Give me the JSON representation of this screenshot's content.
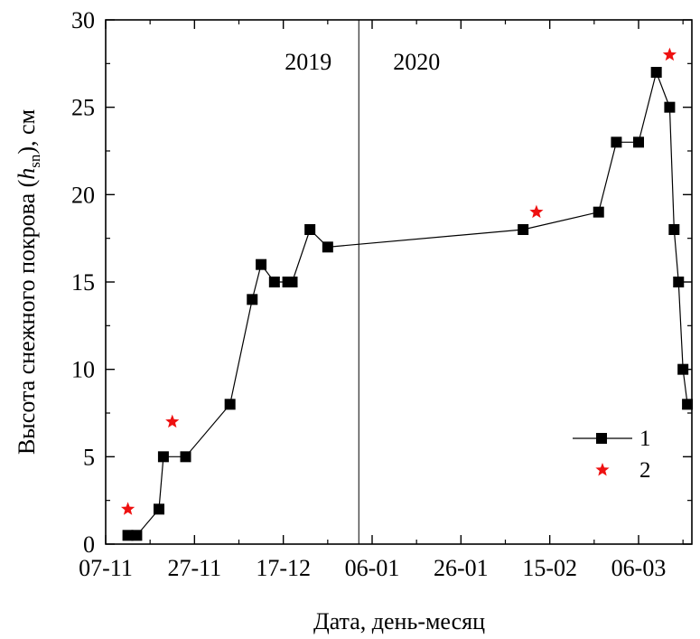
{
  "chart_data": {
    "type": "line",
    "xlabel": "Дата, день-месяц",
    "ylabel_main": "Высота снежного покрова (",
    "ylabel_italic": "h",
    "ylabel_sub": "sn",
    "ylabel_tail": "), см",
    "ylim": [
      0,
      30
    ],
    "yticks": [
      0,
      5,
      10,
      15,
      20,
      25,
      30
    ],
    "xlim": [
      "2019-11-07",
      "2020-03-18"
    ],
    "xtick_dates": [
      "2019-11-07",
      "2019-11-27",
      "2019-12-17",
      "2020-01-06",
      "2020-01-26",
      "2020-02-15",
      "2020-03-06"
    ],
    "xtick_labels": [
      "07-11",
      "27-11",
      "17-12",
      "06-01",
      "26-01",
      "15-02",
      "06-03"
    ],
    "year_divider_date": "2020-01-03",
    "year_labels": [
      {
        "text": "2019",
        "side": "left"
      },
      {
        "text": "2020",
        "side": "right"
      }
    ],
    "series": [
      {
        "name": "1",
        "marker": "square",
        "color": "#000000",
        "points": [
          {
            "x": "2019-11-12",
            "y": 0.5
          },
          {
            "x": "2019-11-14",
            "y": 0.5
          },
          {
            "x": "2019-11-19",
            "y": 2
          },
          {
            "x": "2019-11-20",
            "y": 5
          },
          {
            "x": "2019-11-25",
            "y": 5
          },
          {
            "x": "2019-12-05",
            "y": 8
          },
          {
            "x": "2019-12-10",
            "y": 14
          },
          {
            "x": "2019-12-12",
            "y": 16
          },
          {
            "x": "2019-12-15",
            "y": 15
          },
          {
            "x": "2019-12-18",
            "y": 15
          },
          {
            "x": "2019-12-19",
            "y": 15
          },
          {
            "x": "2019-12-23",
            "y": 18
          },
          {
            "x": "2019-12-27",
            "y": 17
          },
          {
            "x": "2020-02-09",
            "y": 18
          },
          {
            "x": "2020-02-26",
            "y": 19
          },
          {
            "x": "2020-03-01",
            "y": 23
          },
          {
            "x": "2020-03-06",
            "y": 23
          },
          {
            "x": "2020-03-10",
            "y": 27
          },
          {
            "x": "2020-03-13",
            "y": 25
          },
          {
            "x": "2020-03-14",
            "y": 18
          },
          {
            "x": "2020-03-15",
            "y": 15
          },
          {
            "x": "2020-03-16",
            "y": 10
          },
          {
            "x": "2020-03-17",
            "y": 8
          }
        ]
      },
      {
        "name": "2",
        "marker": "star",
        "color": "#ee1111",
        "points": [
          {
            "x": "2019-11-12",
            "y": 2
          },
          {
            "x": "2019-11-22",
            "y": 7
          },
          {
            "x": "2020-02-12",
            "y": 19
          },
          {
            "x": "2020-03-13",
            "y": 28
          }
        ]
      }
    ],
    "legend_position": "lower-right"
  }
}
